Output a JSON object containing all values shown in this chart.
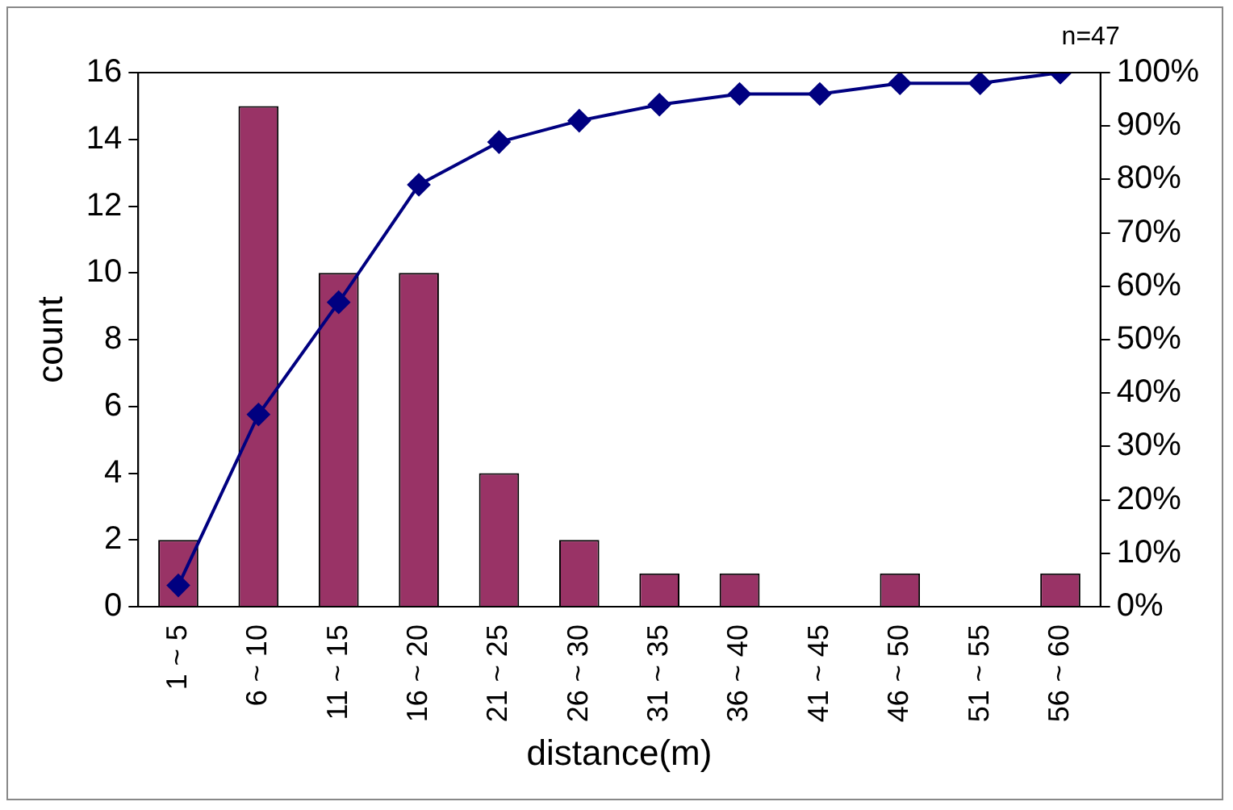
{
  "chart_data": {
    "type": "bar",
    "xlabel": "distance(m)",
    "ylabel": "count",
    "categories": [
      "1 ~ 5",
      "6 ~ 10",
      "11 ~ 15",
      "16 ~ 20",
      "21 ~ 25",
      "26 ~ 30",
      "31 ~ 35",
      "36 ~ 40",
      "41 ~ 45",
      "46 ~ 50",
      "51 ~ 55",
      "56 ~ 60"
    ],
    "series": [
      {
        "color": "#993366",
        "values": [
          2,
          15,
          10,
          10,
          4,
          2,
          1,
          1,
          0,
          1,
          0,
          1
        ]
      },
      {
        "type": "line",
        "axis": "y2",
        "color": "#000080",
        "values": [
          4,
          36,
          57,
          79,
          87,
          91,
          94,
          96,
          96,
          98,
          98,
          100
        ]
      }
    ],
    "ylim": [
      0,
      16
    ],
    "yticks": [
      0,
      2,
      4,
      6,
      8,
      10,
      12,
      14,
      16
    ],
    "y2lim": [
      0,
      100
    ],
    "y2ticks": [
      {
        "value": 0,
        "label": "0%"
      },
      {
        "value": 10,
        "label": "10%"
      },
      {
        "value": 20,
        "label": "20%"
      },
      {
        "value": 30,
        "label": "30%"
      },
      {
        "value": 40,
        "label": "40%"
      },
      {
        "value": 50,
        "label": "50%"
      },
      {
        "value": 60,
        "label": "60%"
      },
      {
        "value": 70,
        "label": "70%"
      },
      {
        "value": 80,
        "label": "80%"
      },
      {
        "value": 90,
        "label": "90%"
      },
      {
        "value": 100,
        "label": "100%"
      }
    ],
    "marker": "diamond",
    "grid": false,
    "legend": false,
    "annotations": [
      "n=47"
    ]
  }
}
